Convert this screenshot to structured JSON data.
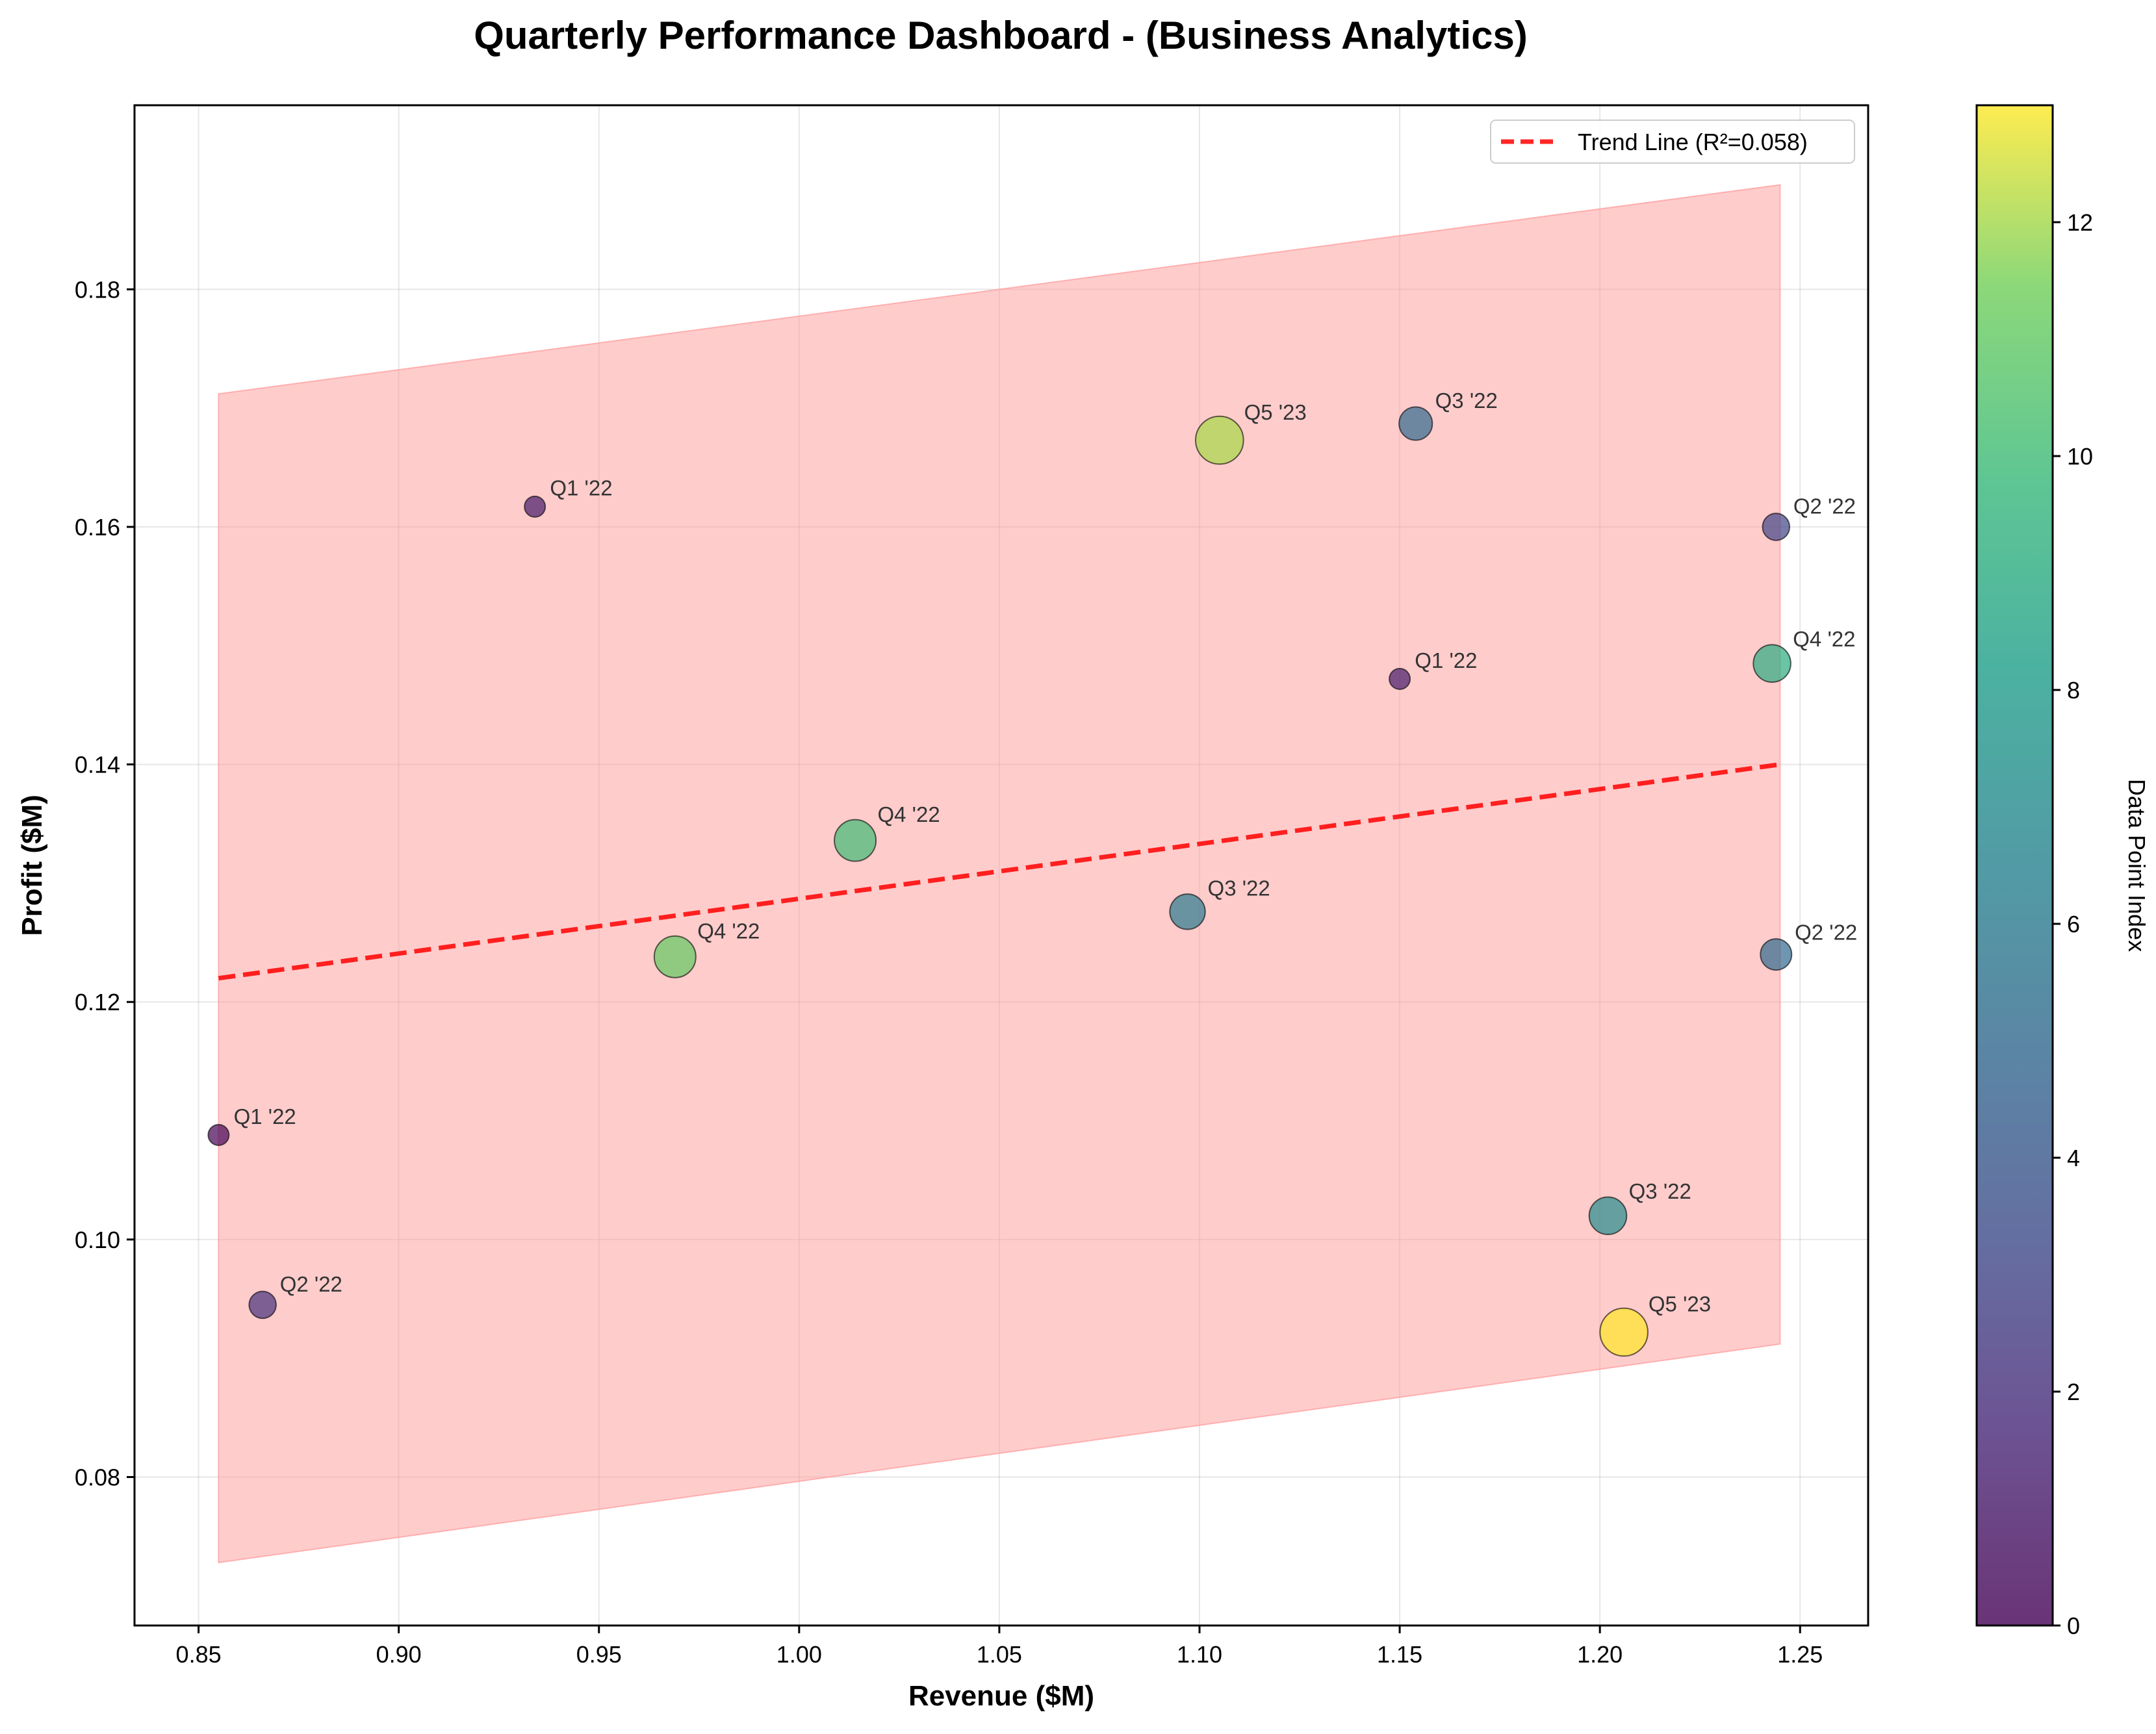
{
  "chart_data": {
    "type": "scatter",
    "title": "Quarterly Performance Dashboard - (Business Analytics)",
    "xlabel": "Revenue ($M)",
    "ylabel": "Profit ($M)",
    "xlim": [
      0.834,
      1.267
    ],
    "ylim": [
      0.0675,
      0.1955
    ],
    "xticks": [
      0.85,
      0.9,
      0.95,
      1.0,
      1.05,
      1.1,
      1.15,
      1.2,
      1.25
    ],
    "xtick_labels": [
      "0.85",
      "0.90",
      "0.95",
      "1.00",
      "1.05",
      "1.10",
      "1.15",
      "1.20",
      "1.25"
    ],
    "yticks": [
      0.08,
      0.1,
      0.12,
      0.14,
      0.16,
      0.18
    ],
    "ytick_labels": [
      "0.08",
      "0.10",
      "0.12",
      "0.14",
      "0.16",
      "0.18"
    ],
    "grid": true,
    "legend_position": "top-right",
    "legend": [
      {
        "label": "Trend Line (R²=0.058)",
        "color": "#ff0000",
        "style": "dashed"
      }
    ],
    "trend_line": {
      "x": [
        0.855,
        1.245
      ],
      "y": [
        0.122,
        0.14
      ],
      "color": "#ff0000"
    },
    "confidence_band": {
      "x": [
        0.855,
        1.245
      ],
      "upper": [
        0.1712,
        0.1888
      ],
      "lower": [
        0.0728,
        0.0912
      ],
      "color": "#ff9999"
    },
    "colorbar": {
      "label": "Data Point Index",
      "min": 0,
      "max": 13,
      "ticks": [
        0,
        2,
        4,
        6,
        8,
        10,
        12
      ],
      "tick_labels": [
        "0",
        "2",
        "4",
        "6",
        "8",
        "10",
        "12"
      ],
      "colormap": "viridis"
    },
    "points": [
      {
        "label": "Q1 '22",
        "x": 0.855,
        "y": 0.1088,
        "index": 0,
        "size": 1.0
      },
      {
        "label": "Q1 '22",
        "x": 0.934,
        "y": 0.1617,
        "index": 1,
        "size": 1.0
      },
      {
        "label": "Q1 '22",
        "x": 1.15,
        "y": 0.1472,
        "index": 1,
        "size": 1.0
      },
      {
        "label": "Q2 '22",
        "x": 0.866,
        "y": 0.0945,
        "index": 2,
        "size": 1.3
      },
      {
        "label": "Q2 '22",
        "x": 1.244,
        "y": 0.16,
        "index": 3,
        "size": 1.3
      },
      {
        "label": "Q2 '22",
        "x": 1.244,
        "y": 0.124,
        "index": 5,
        "size": 1.5
      },
      {
        "label": "Q3 '22",
        "x": 1.154,
        "y": 0.1687,
        "index": 5,
        "size": 1.6
      },
      {
        "label": "Q3 '22",
        "x": 1.097,
        "y": 0.1276,
        "index": 6,
        "size": 1.7
      },
      {
        "label": "Q3 '22",
        "x": 1.202,
        "y": 0.102,
        "index": 7,
        "size": 1.8
      },
      {
        "label": "Q4 '22",
        "x": 1.243,
        "y": 0.1485,
        "index": 9,
        "size": 1.8
      },
      {
        "label": "Q4 '22",
        "x": 1.014,
        "y": 0.1336,
        "index": 10,
        "size": 2.0
      },
      {
        "label": "Q4 '22",
        "x": 0.969,
        "y": 0.1238,
        "index": 11,
        "size": 2.0
      },
      {
        "label": "Q5 '23",
        "x": 1.105,
        "y": 0.1673,
        "index": 12,
        "size": 2.3
      },
      {
        "label": "Q5 '23",
        "x": 1.206,
        "y": 0.0922,
        "index": 13,
        "size": 2.3
      }
    ]
  }
}
